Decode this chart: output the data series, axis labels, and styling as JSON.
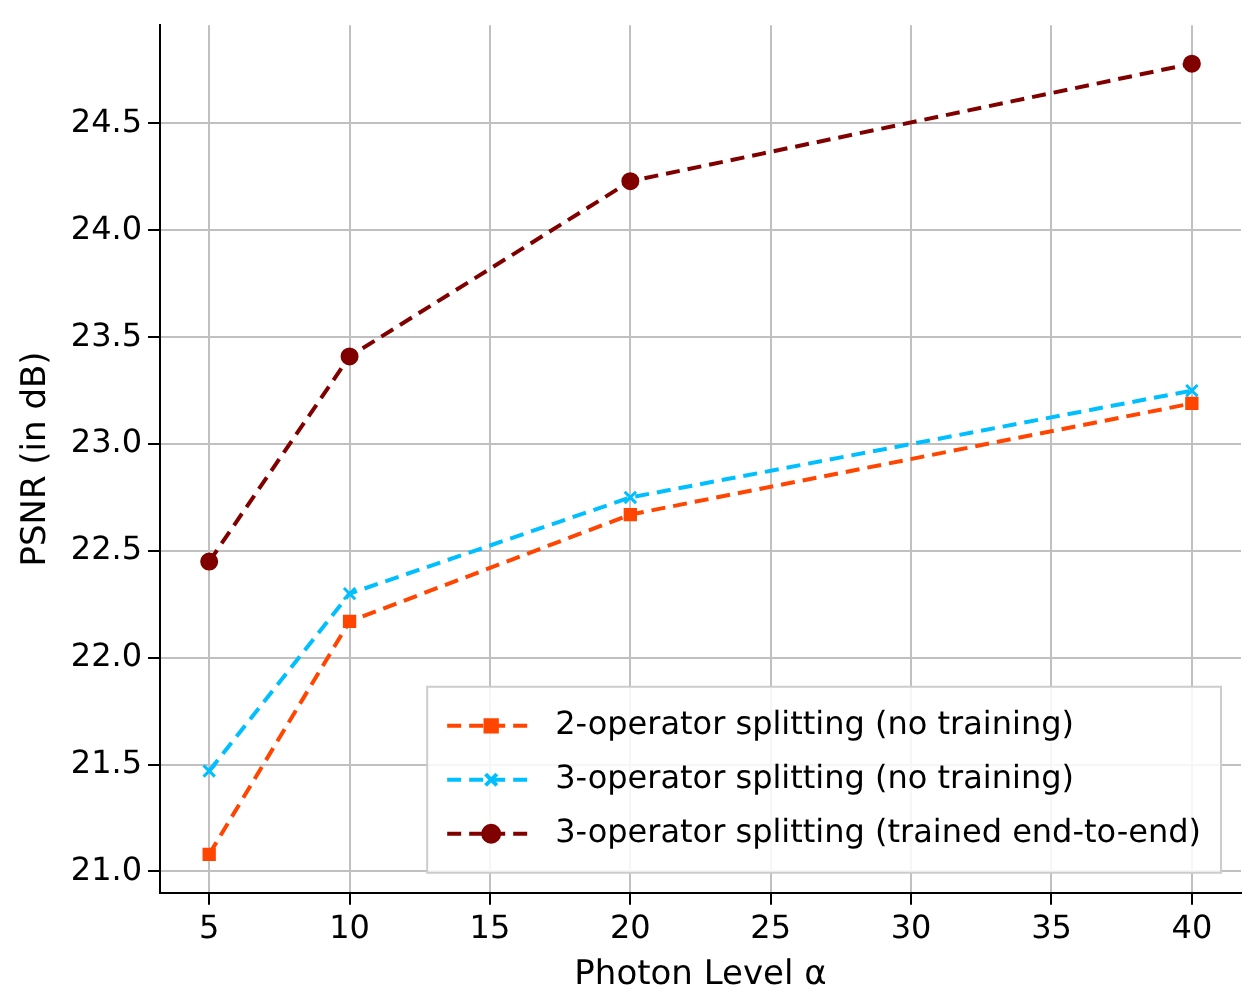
{
  "chart_data": {
    "type": "line",
    "xlabel": "Photon Level α",
    "ylabel": "PSNR (in dB)",
    "x": [
      5,
      10,
      20,
      40
    ],
    "series": [
      {
        "name": "2-operator splitting (no training)",
        "color": "#ff4500",
        "marker": "square",
        "values": [
          21.08,
          22.17,
          22.67,
          23.19
        ]
      },
      {
        "name": "3-operator splitting (no training)",
        "color": "#00bfff",
        "marker": "cross",
        "values": [
          21.47,
          22.3,
          22.75,
          23.25
        ]
      },
      {
        "name": "3-operator splitting (trained end-to-end)",
        "color": "#800000",
        "marker": "circle",
        "values": [
          22.45,
          23.41,
          24.23,
          24.78
        ]
      }
    ],
    "xlim": [
      3.25,
      41.75
    ],
    "xticks": [
      5,
      10,
      15,
      20,
      25,
      30,
      35,
      40
    ],
    "ylim": [
      20.9,
      24.96
    ],
    "yticks": [
      {
        "value": 21,
        "label": "21.0"
      },
      21.5,
      {
        "value": 22,
        "label": "22.0"
      },
      22.5,
      {
        "value": 23,
        "label": "23.0"
      },
      23.5,
      {
        "value": 24,
        "label": "24.0"
      },
      24.5
    ],
    "grid": true,
    "legend": "bottom right",
    "line_style": "dashed"
  }
}
